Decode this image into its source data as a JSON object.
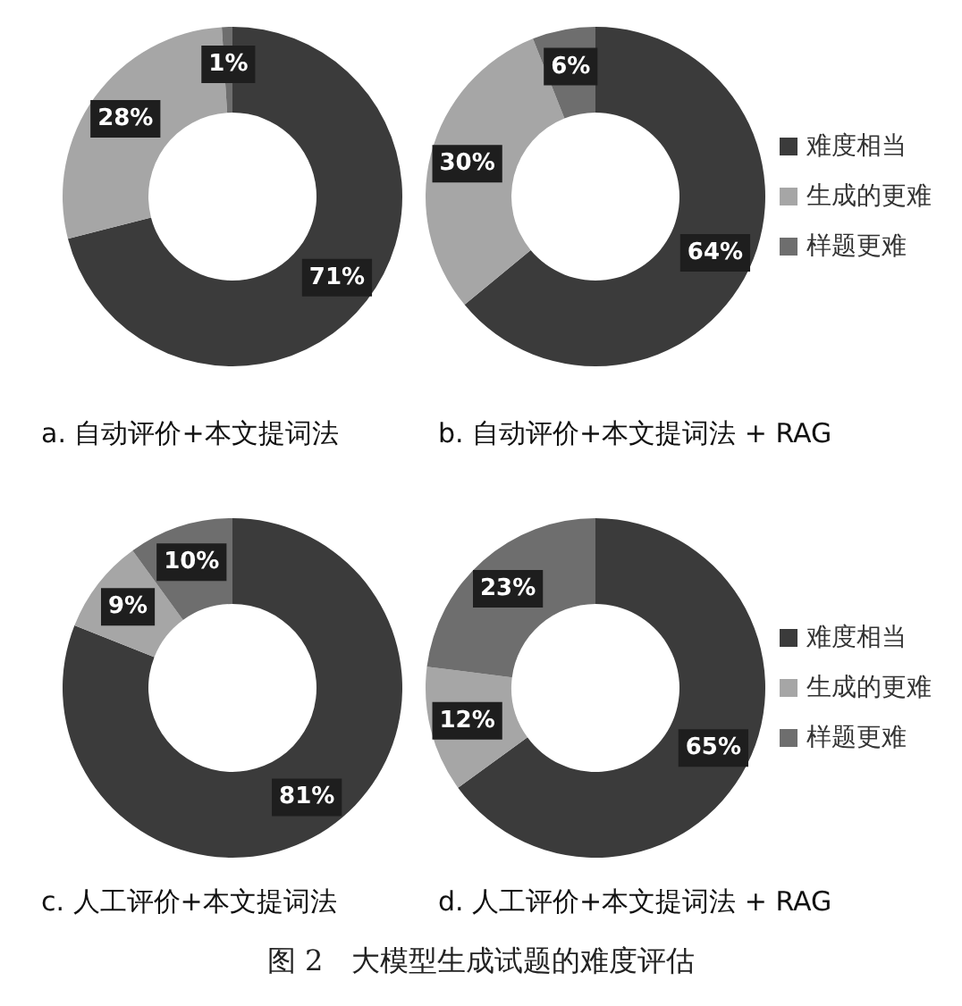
{
  "chart_data": [
    {
      "type": "donut",
      "title": "a. 自动评价+本文提词法",
      "categories": [
        null,
        null,
        null
      ],
      "values": [
        71,
        28,
        1
      ],
      "colors": [
        "#3b3b3b",
        "#a6a6a6",
        "#6e6e6e"
      ],
      "value_labels": [
        "71%",
        "28%",
        "1%"
      ],
      "legend": false
    },
    {
      "type": "donut",
      "title": "b. 自动评价+本文提词法 + RAG",
      "categories": [
        "难度相当",
        "生成的更难",
        "样题更难"
      ],
      "values": [
        64,
        30,
        6
      ],
      "colors": [
        "#3b3b3b",
        "#a6a6a6",
        "#6e6e6e"
      ],
      "value_labels": [
        "64%",
        "30%",
        "6%"
      ],
      "legend": "right"
    },
    {
      "type": "donut",
      "title": "c. 人工评价+本文提词法",
      "categories": [
        null,
        null,
        null
      ],
      "values": [
        81,
        9,
        10
      ],
      "colors": [
        "#3b3b3b",
        "#a6a6a6",
        "#6e6e6e"
      ],
      "value_labels": [
        "81%",
        "9%",
        "10%"
      ],
      "legend": false
    },
    {
      "type": "donut",
      "title": "d. 人工评价+本文提词法 + RAG",
      "categories": [
        "难度相当",
        "生成的更难",
        "样题更难"
      ],
      "values": [
        65,
        12,
        23
      ],
      "colors": [
        "#3b3b3b",
        "#a6a6a6",
        "#6e6e6e"
      ],
      "value_labels": [
        "65%",
        "12%",
        "23%"
      ],
      "legend": "right",
      "annotations": [
        "图 2　大模型生成试题的难度评估"
      ]
    }
  ]
}
